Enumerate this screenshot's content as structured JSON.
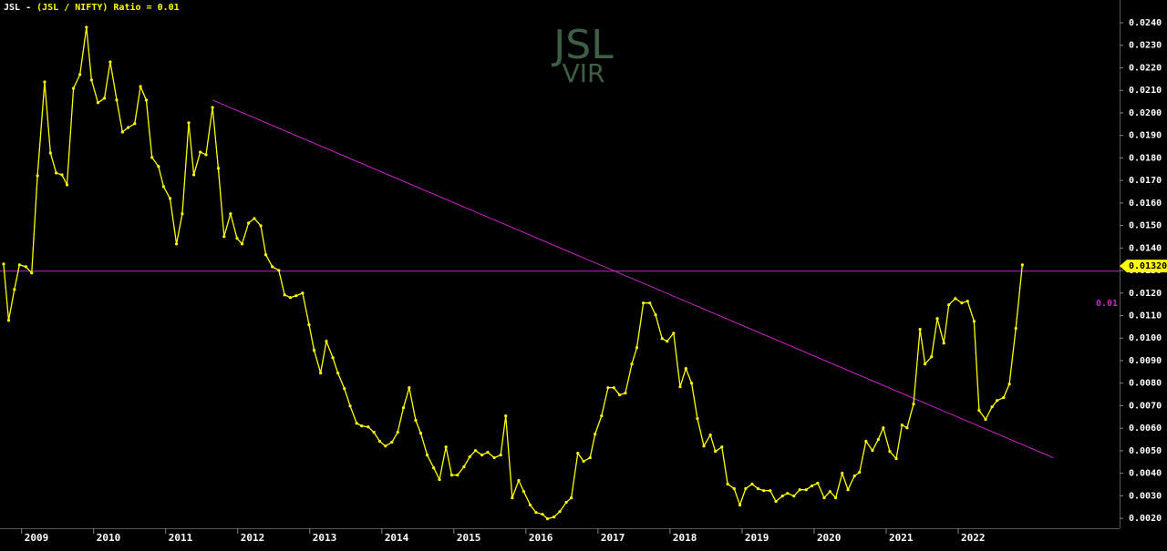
{
  "chart_data": {
    "type": "line",
    "title_prefix": "JSL - ",
    "title": "(JSL / NIFTY) Ratio = 0.01",
    "watermark": [
      "JSL",
      "VIR"
    ],
    "xlim": [
      2008.7,
      2024.24
    ],
    "ylim": [
      0.00156,
      0.02501
    ],
    "xticks": [
      2009,
      2010,
      2011,
      2012,
      2013,
      2014,
      2015,
      2016,
      2017,
      2018,
      2019,
      2020,
      2021,
      2022
    ],
    "yticks": [
      {
        "value": 0.002,
        "label": "0.0020"
      },
      {
        "value": 0.003,
        "label": "0.0030"
      },
      {
        "value": 0.004,
        "label": "0.0040"
      },
      {
        "value": 0.005,
        "label": "0.0050"
      },
      {
        "value": 0.006,
        "label": "0.0060"
      },
      {
        "value": 0.007,
        "label": "0.0070"
      },
      {
        "value": 0.008,
        "label": "0.0080"
      },
      {
        "value": 0.009,
        "label": "0.0090"
      },
      {
        "value": 0.01,
        "label": "0.0100"
      },
      {
        "value": 0.011,
        "label": "0.0110"
      },
      {
        "value": 0.012,
        "label": "0.0120"
      },
      {
        "value": 0.013,
        "label": "0.0130"
      },
      {
        "value": 0.014,
        "label": "0.0140"
      },
      {
        "value": 0.015,
        "label": "0.0150"
      },
      {
        "value": 0.016,
        "label": "0.0160"
      },
      {
        "value": 0.017,
        "label": "0.0170"
      },
      {
        "value": 0.018,
        "label": "0.0180"
      },
      {
        "value": 0.019,
        "label": "0.0190"
      },
      {
        "value": 0.02,
        "label": "0.0200"
      },
      {
        "value": 0.021,
        "label": "0.0210"
      },
      {
        "value": 0.022,
        "label": "0.0220"
      },
      {
        "value": 0.023,
        "label": "0.0230"
      },
      {
        "value": 0.024,
        "label": "0.0240"
      }
    ],
    "series": [
      {
        "name": "JSL / NIFTY",
        "color": "#ffff00",
        "x": [
          2008.75,
          2008.82,
          2008.9,
          2008.97,
          2009.06,
          2009.14,
          2009.22,
          2009.32,
          2009.4,
          2009.48,
          2009.56,
          2009.63,
          2009.72,
          2009.81,
          2009.9,
          2009.97,
          2010.06,
          2010.15,
          2010.23,
          2010.32,
          2010.4,
          2010.48,
          2010.57,
          2010.65,
          2010.73,
          2010.81,
          2010.9,
          2010.97,
          2011.06,
          2011.15,
          2011.23,
          2011.32,
          2011.39,
          2011.48,
          2011.56,
          2011.65,
          2011.73,
          2011.81,
          2011.9,
          2011.99,
          2012.06,
          2012.15,
          2012.23,
          2012.32,
          2012.39,
          2012.48,
          2012.57,
          2012.65,
          2012.73,
          2012.81,
          2012.9,
          2012.99,
          2013.06,
          2013.15,
          2013.23,
          2013.32,
          2013.39,
          2013.48,
          2013.56,
          2013.65,
          2013.72,
          2013.81,
          2013.89,
          2013.97,
          2014.05,
          2014.14,
          2014.22,
          2014.3,
          2014.38,
          2014.47,
          2014.54,
          2014.63,
          2014.72,
          2014.8,
          2014.89,
          2014.97,
          2015.05,
          2015.14,
          2015.22,
          2015.3,
          2015.39,
          2015.47,
          2015.56,
          2015.65,
          2015.72,
          2015.81,
          2015.9,
          2015.97,
          2016.06,
          2016.14,
          2016.23,
          2016.3,
          2016.39,
          2016.47,
          2016.56,
          2016.63,
          2016.72,
          2016.8,
          2016.89,
          2016.96,
          2017.05,
          2017.14,
          2017.22,
          2017.3,
          2017.38,
          2017.47,
          2017.54,
          2017.63,
          2017.72,
          2017.8,
          2017.89,
          2017.96,
          2018.05,
          2018.14,
          2018.22,
          2018.3,
          2018.38,
          2018.47,
          2018.56,
          2018.63,
          2018.72,
          2018.8,
          2018.89,
          2018.97,
          2019.05,
          2019.14,
          2019.22,
          2019.3,
          2019.39,
          2019.47,
          2019.56,
          2019.63,
          2019.72,
          2019.8,
          2019.89,
          2019.97,
          2020.05,
          2020.14,
          2020.22,
          2020.3,
          2020.39,
          2020.47,
          2020.56,
          2020.63,
          2020.72,
          2020.81,
          2020.89,
          2020.96,
          2021.05,
          2021.14,
          2021.22,
          2021.29,
          2021.38,
          2021.47,
          2021.54,
          2021.63,
          2021.71,
          2021.8,
          2021.87,
          2021.96,
          2022.05,
          2022.13,
          2022.22,
          2022.29,
          2022.38,
          2022.47,
          2022.54,
          2022.63,
          2022.71,
          2022.8,
          2022.89
        ],
        "values": [
          0.01329,
          0.01079,
          0.01216,
          0.01325,
          0.01317,
          0.01289,
          0.01721,
          0.02137,
          0.01822,
          0.01733,
          0.01725,
          0.01681,
          0.02109,
          0.0217,
          0.0238,
          0.02146,
          0.02045,
          0.02065,
          0.02226,
          0.02057,
          0.01915,
          0.01935,
          0.01952,
          0.02117,
          0.02057,
          0.01802,
          0.01762,
          0.01673,
          0.0162,
          0.01418,
          0.01552,
          0.01956,
          0.01725,
          0.01826,
          0.01814,
          0.02024,
          0.01754,
          0.01451,
          0.01552,
          0.01443,
          0.01418,
          0.01511,
          0.01531,
          0.01499,
          0.0137,
          0.01317,
          0.01301,
          0.01192,
          0.0118,
          0.01188,
          0.012,
          0.01059,
          0.00946,
          0.00845,
          0.00986,
          0.00913,
          0.00845,
          0.00776,
          0.00699,
          0.00622,
          0.0061,
          0.00606,
          0.00582,
          0.00542,
          0.00521,
          0.00538,
          0.00582,
          0.00691,
          0.0078,
          0.00635,
          0.00578,
          0.00481,
          0.00424,
          0.00372,
          0.00517,
          0.00392,
          0.00392,
          0.00429,
          0.00473,
          0.00501,
          0.00481,
          0.00493,
          0.00469,
          0.00481,
          0.00655,
          0.00291,
          0.00368,
          0.00319,
          0.00259,
          0.00226,
          0.00218,
          0.00198,
          0.00206,
          0.0023,
          0.00271,
          0.00291,
          0.00489,
          0.00453,
          0.00469,
          0.00574,
          0.00655,
          0.0078,
          0.0078,
          0.00748,
          0.00756,
          0.00885,
          0.00958,
          0.01156,
          0.01156,
          0.01103,
          0.00998,
          0.00986,
          0.01022,
          0.00784,
          0.00865,
          0.008,
          0.00643,
          0.00521,
          0.0057,
          0.00497,
          0.00517,
          0.00352,
          0.00332,
          0.00259,
          0.00332,
          0.00352,
          0.00332,
          0.00323,
          0.00323,
          0.00275,
          0.00299,
          0.00311,
          0.00299,
          0.00327,
          0.00327,
          0.00344,
          0.00356,
          0.00291,
          0.00319,
          0.00291,
          0.004,
          0.00327,
          0.00388,
          0.00404,
          0.00542,
          0.00501,
          0.0055,
          0.00602,
          0.00497,
          0.00465,
          0.00614,
          0.00602,
          0.00707,
          0.01039,
          0.00885,
          0.00917,
          0.01087,
          0.00978,
          0.01148,
          0.01176,
          0.01156,
          0.01164,
          0.01075,
          0.00679,
          0.00639,
          0.00695,
          0.00723,
          0.00736,
          0.00796,
          0.01043,
          0.01325
        ]
      }
    ],
    "trendline": {
      "color": "#cc22cc",
      "x": [
        2011.65,
        2023.32
      ],
      "values": [
        0.02057,
        0.00469
      ]
    },
    "level_line": {
      "color": "#cc22cc",
      "value": 0.01297,
      "label": "0.01"
    },
    "last_value": {
      "value": 0.0132,
      "label": "0.01320"
    }
  }
}
